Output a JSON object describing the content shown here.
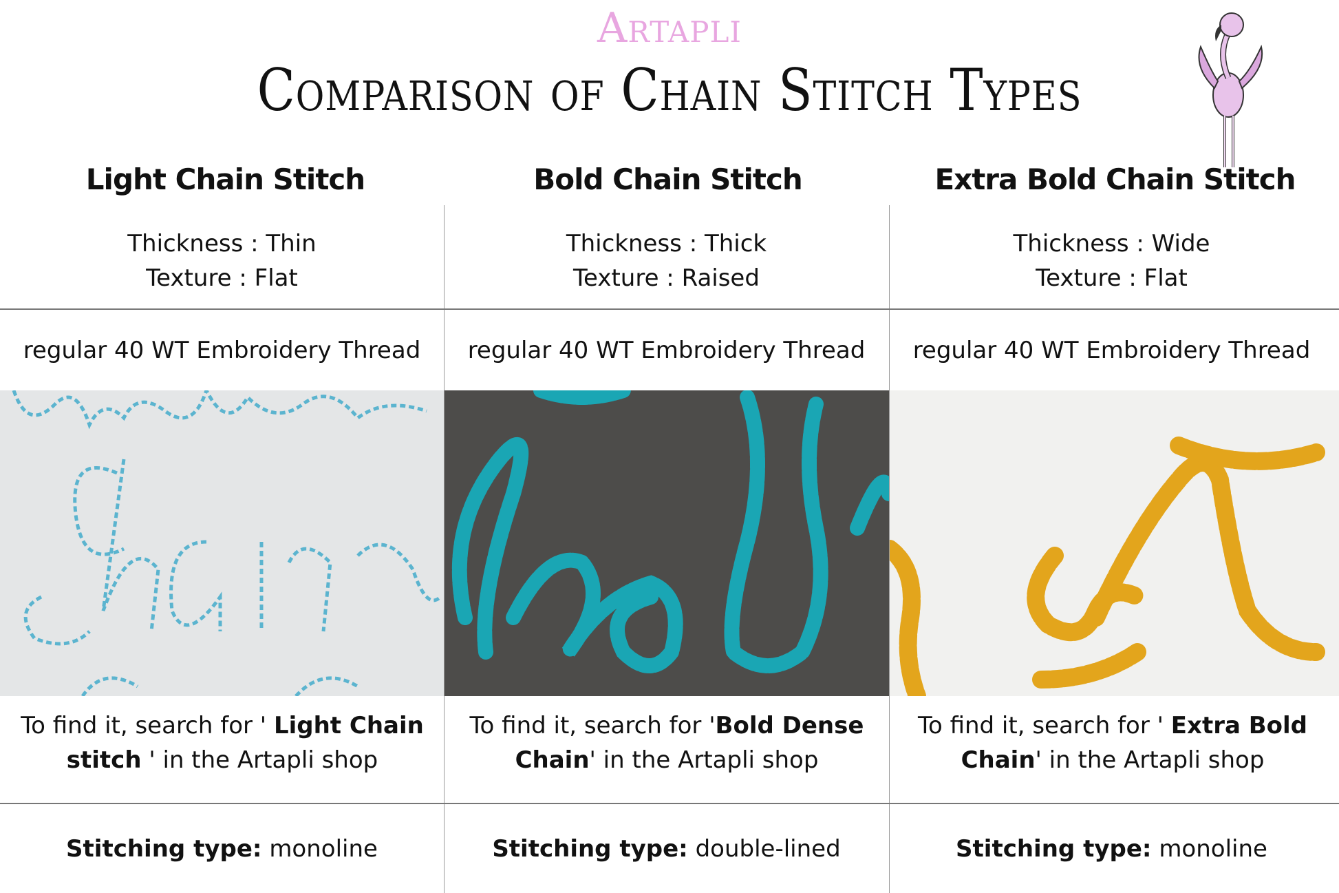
{
  "brand": "Artapli",
  "title": "Comparison of Chain Stitch Types",
  "columns": [
    {
      "header": "Light Chain Stitch",
      "thickness": "Thickness : Thin",
      "texture": "Texture : Flat",
      "thread": "regular 40 WT Embroidery Thread",
      "search_pre": "To find it, search for ' ",
      "search_bold": "Light Chain stitch",
      "search_post": " ' in the Artapli shop",
      "stitch_label": "Stitching type:",
      "stitch_value": "monoline",
      "photo_word": "chain",
      "thread_color": "#5bb4cf"
    },
    {
      "header": "Bold Chain Stitch",
      "thickness": "Thickness : Thick",
      "texture": "Texture : Raised",
      "thread": "regular 40 WT Embroidery Thread",
      "search_pre": "To find it, search for '",
      "search_bold": "Bold Dense Chain",
      "search_post": "' in the Artapli shop",
      "stitch_label": "Stitching type:",
      "stitch_value": "double-lined",
      "photo_word": "bold",
      "thread_color": "#1aa6b4"
    },
    {
      "header": "Extra Bold Chain Stitch",
      "thickness": "Thickness : Wide",
      "texture": "Texture : Flat",
      "thread": "regular 40 WT Embroidery Thread",
      "search_pre": "To find it, search for ' ",
      "search_bold": "Extra Bold Chain",
      "search_post": "' in the Artapli shop",
      "stitch_label": "Stitching type:",
      "stitch_value": "monoline",
      "photo_word": "ex",
      "thread_color": "#e3a51c"
    }
  ]
}
